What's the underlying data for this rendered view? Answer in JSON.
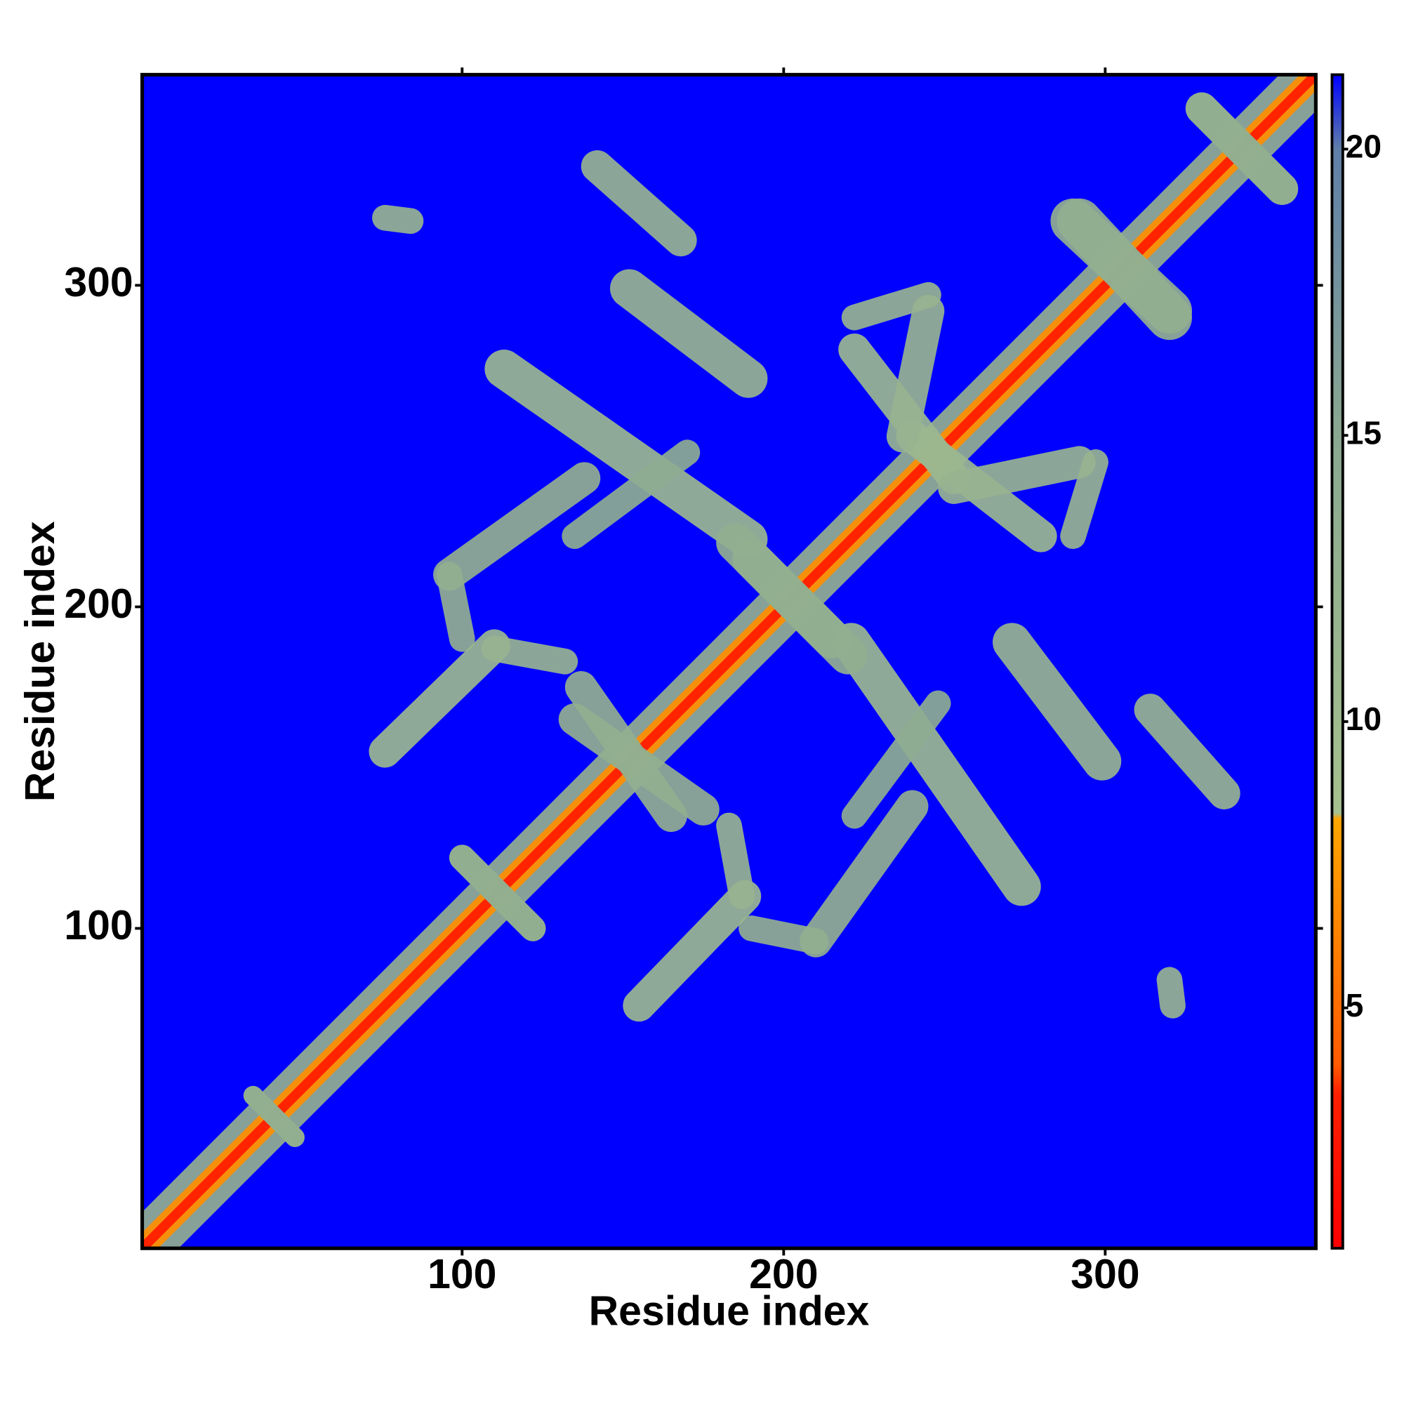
{
  "chart_data": {
    "type": "contact_map",
    "xlabel": "Residue index",
    "ylabel": "Residue index",
    "xlim": [
      0.5,
      365.5
    ],
    "ylim": [
      0.5,
      365.5
    ],
    "xticks": [
      100,
      200,
      300
    ],
    "yticks": [
      100,
      200,
      300
    ],
    "background_color": "#0000ff",
    "symmetric": true,
    "clim": [
      0.8,
      21.3
    ],
    "cticks": [
      5,
      10,
      15,
      20
    ],
    "colormap": [
      {
        "value": 0.8,
        "color": "#ff0000"
      },
      {
        "value": 3.5,
        "color": "#ff2000"
      },
      {
        "value": 4,
        "color": "#ff5a00"
      },
      {
        "value": 8.3,
        "color": "#ffa500"
      },
      {
        "value": 8.4,
        "color": "#a6c08e"
      },
      {
        "value": 15,
        "color": "#8aa890"
      },
      {
        "value": 20,
        "color": "#607fa8"
      },
      {
        "value": 21.3,
        "color": "#0000ff"
      }
    ],
    "features": [
      {
        "from": [
          1,
          1
        ],
        "to": [
          365,
          365
        ],
        "width": 16,
        "value": 13
      },
      {
        "from": [
          1,
          1
        ],
        "to": [
          365,
          365
        ],
        "width": 7,
        "value": 7
      },
      {
        "from": [
          1,
          1
        ],
        "to": [
          365,
          365
        ],
        "width": 3,
        "value": 3
      },
      {
        "from": [
          76,
          321
        ],
        "to": [
          84,
          320
        ],
        "width": 8,
        "value": 12
      },
      {
        "from": [
          142,
          337
        ],
        "to": [
          168,
          314
        ],
        "width": 10,
        "value": 12
      },
      {
        "from": [
          152,
          299
        ],
        "to": [
          189,
          271
        ],
        "width": 12,
        "value": 12
      },
      {
        "from": [
          113,
          274
        ],
        "to": [
          189,
          221
        ],
        "width": 12,
        "value": 11
      },
      {
        "from": [
          138,
          240
        ],
        "to": [
          96,
          210
        ],
        "width": 10,
        "value": 13
      },
      {
        "from": [
          96,
          210
        ],
        "to": [
          100,
          190
        ],
        "width": 8,
        "value": 13
      },
      {
        "from": [
          76,
          155
        ],
        "to": [
          110,
          188
        ],
        "width": 10,
        "value": 11
      },
      {
        "from": [
          110,
          187
        ],
        "to": [
          132,
          183
        ],
        "width": 8,
        "value": 12
      },
      {
        "from": [
          135,
          165
        ],
        "to": [
          175,
          137
        ],
        "width": 10,
        "value": 13
      },
      {
        "from": [
          135,
          222
        ],
        "to": [
          170,
          248
        ],
        "width": 8,
        "value": 14
      },
      {
        "from": [
          222,
          290
        ],
        "to": [
          245,
          297
        ],
        "width": 8,
        "value": 12
      },
      {
        "from": [
          222,
          280
        ],
        "to": [
          253,
          240
        ],
        "width": 10,
        "value": 11
      },
      {
        "from": [
          253,
          237
        ],
        "to": [
          292,
          245
        ],
        "width": 10,
        "value": 12
      },
      {
        "from": [
          290,
          320
        ],
        "to": [
          320,
          292
        ],
        "width": 14,
        "value": 13
      },
      {
        "from": [
          330,
          355
        ],
        "to": [
          355,
          330
        ],
        "width": 10,
        "value": 13
      },
      {
        "from": [
          185,
          220
        ],
        "to": [
          215,
          190
        ],
        "width": 12,
        "value": 13
      },
      {
        "from": [
          100,
          122
        ],
        "to": [
          122,
          100
        ],
        "width": 8,
        "value": 13
      },
      {
        "from": [
          35,
          48
        ],
        "to": [
          48,
          35
        ],
        "width": 6,
        "value": 13
      }
    ]
  }
}
